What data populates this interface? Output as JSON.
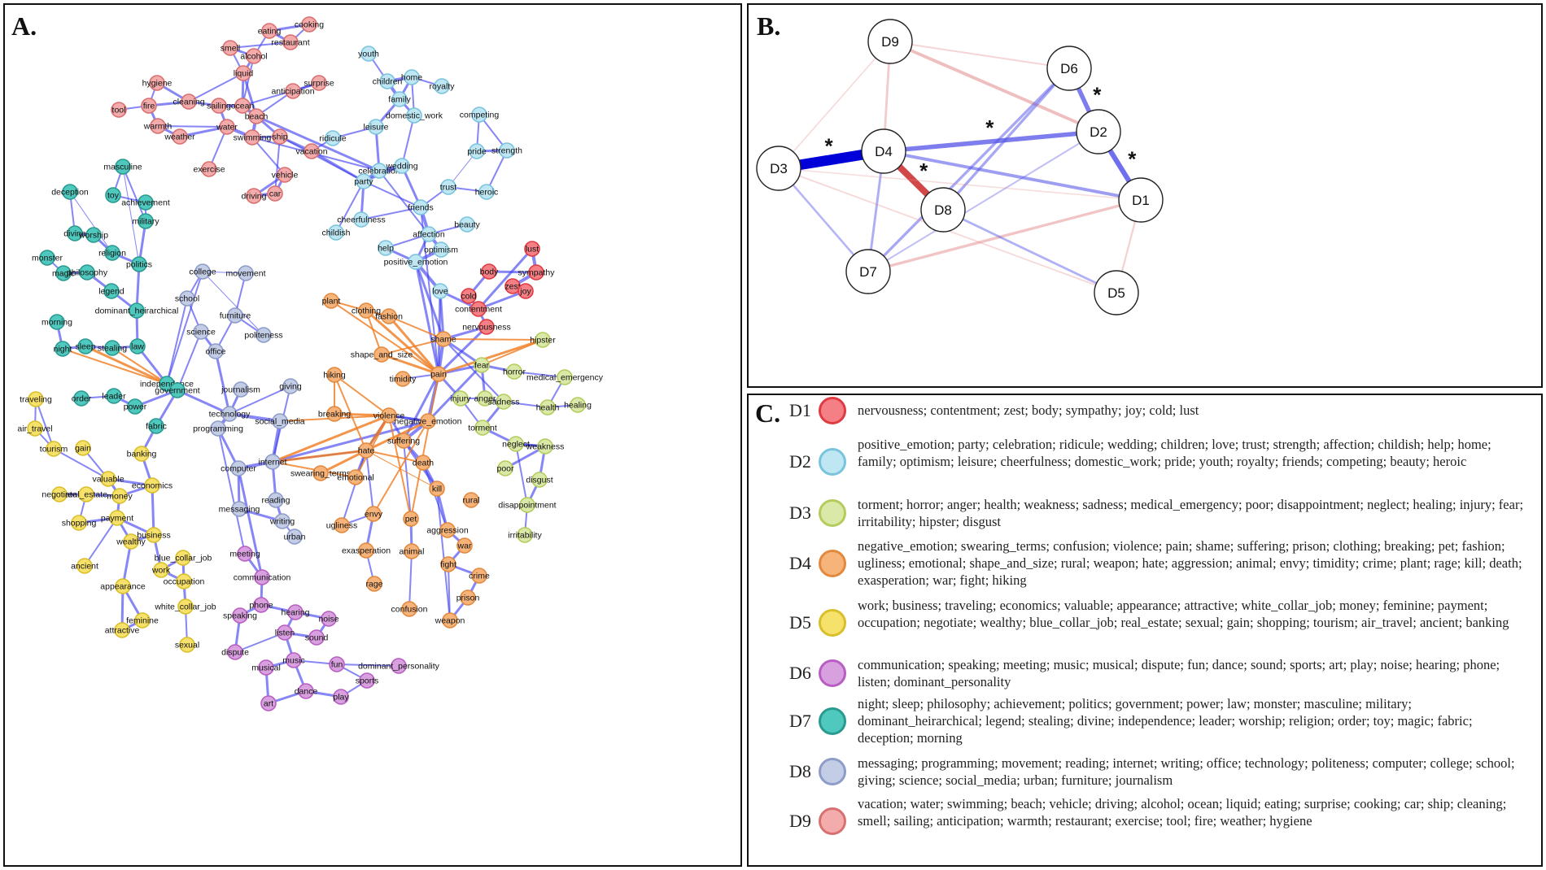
{
  "panel_a": {
    "label": "A.",
    "groups": {
      "D1": {
        "fill": "#f47f84",
        "stroke": "#e03a42"
      },
      "D2": {
        "fill": "#bfe6f3",
        "stroke": "#79c4dd"
      },
      "D3": {
        "fill": "#dbe9a8",
        "stroke": "#b4cc5c"
      },
      "D4": {
        "fill": "#f6b47a",
        "stroke": "#e3893d"
      },
      "D5": {
        "fill": "#f6e16b",
        "stroke": "#d9bf2a"
      },
      "D6": {
        "fill": "#d9a0e0",
        "stroke": "#b85ec2"
      },
      "D7": {
        "fill": "#4fc8bd",
        "stroke": "#2a9a90"
      },
      "D8": {
        "fill": "#c3cde6",
        "stroke": "#8e9cc8"
      },
      "D9": {
        "fill": "#f3abab",
        "stroke": "#d97070"
      }
    },
    "edge_colors": {
      "positive": "#3b3bf0",
      "negative": "#f07a1e"
    },
    "nodes": [
      {
        "id": "cooking",
        "g": "D9"
      },
      {
        "id": "eating",
        "g": "D9"
      },
      {
        "id": "restaurant",
        "g": "D9"
      },
      {
        "id": "smell",
        "g": "D9"
      },
      {
        "id": "alcohol",
        "g": "D9"
      },
      {
        "id": "liquid",
        "g": "D9"
      },
      {
        "id": "hygiene",
        "g": "D9"
      },
      {
        "id": "surprise",
        "g": "D9"
      },
      {
        "id": "anticipation",
        "g": "D9"
      },
      {
        "id": "tool",
        "g": "D9"
      },
      {
        "id": "fire",
        "g": "D9"
      },
      {
        "id": "cleaning",
        "g": "D9"
      },
      {
        "id": "sailing",
        "g": "D9"
      },
      {
        "id": "ocean",
        "g": "D9"
      },
      {
        "id": "beach",
        "g": "D9"
      },
      {
        "id": "warmth",
        "g": "D9"
      },
      {
        "id": "water",
        "g": "D9"
      },
      {
        "id": "weather",
        "g": "D9"
      },
      {
        "id": "swimming",
        "g": "D9"
      },
      {
        "id": "ship",
        "g": "D9"
      },
      {
        "id": "vacation",
        "g": "D9"
      },
      {
        "id": "exercise",
        "g": "D9"
      },
      {
        "id": "vehicle",
        "g": "D9"
      },
      {
        "id": "driving",
        "g": "D9"
      },
      {
        "id": "car",
        "g": "D9"
      },
      {
        "id": "youth",
        "g": "D2"
      },
      {
        "id": "children",
        "g": "D2"
      },
      {
        "id": "home",
        "g": "D2"
      },
      {
        "id": "royalty",
        "g": "D2"
      },
      {
        "id": "family",
        "g": "D2"
      },
      {
        "id": "domestic_work",
        "g": "D2"
      },
      {
        "id": "leisure",
        "g": "D2"
      },
      {
        "id": "ridicule",
        "g": "D2"
      },
      {
        "id": "competing",
        "g": "D2"
      },
      {
        "id": "pride",
        "g": "D2"
      },
      {
        "id": "strength",
        "g": "D2"
      },
      {
        "id": "celebration",
        "g": "D2"
      },
      {
        "id": "wedding",
        "g": "D2"
      },
      {
        "id": "party",
        "g": "D2"
      },
      {
        "id": "trust",
        "g": "D2"
      },
      {
        "id": "heroic",
        "g": "D2"
      },
      {
        "id": "friends",
        "g": "D2"
      },
      {
        "id": "beauty",
        "g": "D2"
      },
      {
        "id": "cheerfulness",
        "g": "D2"
      },
      {
        "id": "affection",
        "g": "D2"
      },
      {
        "id": "childish",
        "g": "D2"
      },
      {
        "id": "optimism",
        "g": "D2"
      },
      {
        "id": "help",
        "g": "D2"
      },
      {
        "id": "positive_emotion",
        "g": "D2"
      },
      {
        "id": "love",
        "g": "D2"
      },
      {
        "id": "masculine",
        "g": "D7"
      },
      {
        "id": "deception",
        "g": "D7"
      },
      {
        "id": "toy",
        "g": "D7"
      },
      {
        "id": "achievement",
        "g": "D7"
      },
      {
        "id": "military",
        "g": "D7"
      },
      {
        "id": "divine",
        "g": "D7"
      },
      {
        "id": "worship",
        "g": "D7"
      },
      {
        "id": "religion",
        "g": "D7"
      },
      {
        "id": "monster",
        "g": "D7"
      },
      {
        "id": "politics",
        "g": "D7"
      },
      {
        "id": "magic",
        "g": "D7"
      },
      {
        "id": "philosophy",
        "g": "D7"
      },
      {
        "id": "legend",
        "g": "D7"
      },
      {
        "id": "dominant_heirarchical",
        "g": "D7"
      },
      {
        "id": "morning",
        "g": "D7"
      },
      {
        "id": "night",
        "g": "D7"
      },
      {
        "id": "sleep",
        "g": "D7"
      },
      {
        "id": "stealing",
        "g": "D7"
      },
      {
        "id": "law",
        "g": "D7"
      },
      {
        "id": "independence",
        "g": "D7"
      },
      {
        "id": "government",
        "g": "D7"
      },
      {
        "id": "order",
        "g": "D7"
      },
      {
        "id": "leader",
        "g": "D7"
      },
      {
        "id": "power",
        "g": "D7"
      },
      {
        "id": "fabric",
        "g": "D7"
      },
      {
        "id": "college",
        "g": "D8"
      },
      {
        "id": "movement",
        "g": "D8"
      },
      {
        "id": "school",
        "g": "D8"
      },
      {
        "id": "furniture",
        "g": "D8"
      },
      {
        "id": "science",
        "g": "D8"
      },
      {
        "id": "politeness",
        "g": "D8"
      },
      {
        "id": "office",
        "g": "D8"
      },
      {
        "id": "journalism",
        "g": "D8"
      },
      {
        "id": "giving",
        "g": "D8"
      },
      {
        "id": "technology",
        "g": "D8"
      },
      {
        "id": "social_media",
        "g": "D8"
      },
      {
        "id": "programming",
        "g": "D8"
      },
      {
        "id": "internet",
        "g": "D8"
      },
      {
        "id": "computer",
        "g": "D8"
      },
      {
        "id": "reading",
        "g": "D8"
      },
      {
        "id": "messaging",
        "g": "D8"
      },
      {
        "id": "writing",
        "g": "D8"
      },
      {
        "id": "urban",
        "g": "D8"
      },
      {
        "id": "lust",
        "g": "D1"
      },
      {
        "id": "body",
        "g": "D1"
      },
      {
        "id": "sympathy",
        "g": "D1"
      },
      {
        "id": "zest",
        "g": "D1"
      },
      {
        "id": "joy",
        "g": "D1"
      },
      {
        "id": "cold",
        "g": "D1"
      },
      {
        "id": "contentment",
        "g": "D1"
      },
      {
        "id": "nervousness",
        "g": "D1"
      },
      {
        "id": "plant",
        "g": "D4"
      },
      {
        "id": "clothing",
        "g": "D4"
      },
      {
        "id": "fashion",
        "g": "D4"
      },
      {
        "id": "shame",
        "g": "D4"
      },
      {
        "id": "shape_and_size",
        "g": "D4"
      },
      {
        "id": "pain",
        "g": "D4"
      },
      {
        "id": "timidity",
        "g": "D4"
      },
      {
        "id": "hiking",
        "g": "D4"
      },
      {
        "id": "breaking",
        "g": "D4"
      },
      {
        "id": "violence",
        "g": "D4"
      },
      {
        "id": "negative_emotion",
        "g": "D4"
      },
      {
        "id": "suffering",
        "g": "D4"
      },
      {
        "id": "hate",
        "g": "D4"
      },
      {
        "id": "death",
        "g": "D4"
      },
      {
        "id": "swearing_terms",
        "g": "D4"
      },
      {
        "id": "emotional",
        "g": "D4"
      },
      {
        "id": "kill",
        "g": "D4"
      },
      {
        "id": "rural",
        "g": "D4"
      },
      {
        "id": "envy",
        "g": "D4"
      },
      {
        "id": "pet",
        "g": "D4"
      },
      {
        "id": "ugliness",
        "g": "D4"
      },
      {
        "id": "aggression",
        "g": "D4"
      },
      {
        "id": "war",
        "g": "D4"
      },
      {
        "id": "exasperation",
        "g": "D4"
      },
      {
        "id": "animal",
        "g": "D4"
      },
      {
        "id": "fight",
        "g": "D4"
      },
      {
        "id": "crime",
        "g": "D4"
      },
      {
        "id": "rage",
        "g": "D4"
      },
      {
        "id": "prison",
        "g": "D4"
      },
      {
        "id": "confusion",
        "g": "D4"
      },
      {
        "id": "weapon",
        "g": "D4"
      },
      {
        "id": "hipster",
        "g": "D3"
      },
      {
        "id": "fear",
        "g": "D3"
      },
      {
        "id": "horror",
        "g": "D3"
      },
      {
        "id": "medical_emergency",
        "g": "D3"
      },
      {
        "id": "injury",
        "g": "D3"
      },
      {
        "id": "anger",
        "g": "D3"
      },
      {
        "id": "sadness",
        "g": "D3"
      },
      {
        "id": "health",
        "g": "D3"
      },
      {
        "id": "healing",
        "g": "D3"
      },
      {
        "id": "torment",
        "g": "D3"
      },
      {
        "id": "neglect",
        "g": "D3"
      },
      {
        "id": "weakness",
        "g": "D3"
      },
      {
        "id": "poor",
        "g": "D3"
      },
      {
        "id": "disgust",
        "g": "D3"
      },
      {
        "id": "disappointment",
        "g": "D3"
      },
      {
        "id": "irritability",
        "g": "D3"
      },
      {
        "id": "traveling",
        "g": "D5"
      },
      {
        "id": "air_travel",
        "g": "D5"
      },
      {
        "id": "tourism",
        "g": "D5"
      },
      {
        "id": "gain",
        "g": "D5"
      },
      {
        "id": "banking",
        "g": "D5"
      },
      {
        "id": "valuable",
        "g": "D5"
      },
      {
        "id": "economics",
        "g": "D5"
      },
      {
        "id": "negotiate",
        "g": "D5"
      },
      {
        "id": "real_estate",
        "g": "D5"
      },
      {
        "id": "money",
        "g": "D5"
      },
      {
        "id": "payment",
        "g": "D5"
      },
      {
        "id": "shopping",
        "g": "D5"
      },
      {
        "id": "business",
        "g": "D5"
      },
      {
        "id": "wealthy",
        "g": "D5"
      },
      {
        "id": "blue_collar_job",
        "g": "D5"
      },
      {
        "id": "ancient",
        "g": "D5"
      },
      {
        "id": "work",
        "g": "D5"
      },
      {
        "id": "occupation",
        "g": "D5"
      },
      {
        "id": "appearance",
        "g": "D5"
      },
      {
        "id": "white_collar_job",
        "g": "D5"
      },
      {
        "id": "feminine",
        "g": "D5"
      },
      {
        "id": "attractive",
        "g": "D5"
      },
      {
        "id": "sexual",
        "g": "D5"
      },
      {
        "id": "meeting",
        "g": "D6"
      },
      {
        "id": "communication",
        "g": "D6"
      },
      {
        "id": "phone",
        "g": "D6"
      },
      {
        "id": "speaking",
        "g": "D6"
      },
      {
        "id": "hearing",
        "g": "D6"
      },
      {
        "id": "noise",
        "g": "D6"
      },
      {
        "id": "listen",
        "g": "D6"
      },
      {
        "id": "sound",
        "g": "D6"
      },
      {
        "id": "dispute",
        "g": "D6"
      },
      {
        "id": "music",
        "g": "D6"
      },
      {
        "id": "fun",
        "g": "D6"
      },
      {
        "id": "dominant_personality",
        "g": "D6"
      },
      {
        "id": "musical",
        "g": "D6"
      },
      {
        "id": "sports",
        "g": "D6"
      },
      {
        "id": "dance",
        "g": "D6"
      },
      {
        "id": "play",
        "g": "D6"
      },
      {
        "id": "art",
        "g": "D6"
      }
    ]
  },
  "panel_b": {
    "label": "B.",
    "nodes": [
      "D9",
      "D6",
      "D2",
      "D3",
      "D4",
      "D1",
      "D8",
      "D7",
      "D5"
    ],
    "edges": [
      {
        "a": "D3",
        "b": "D4",
        "weight": 0.9,
        "sign": "positive",
        "significant": true
      },
      {
        "a": "D4",
        "b": "D8",
        "weight": 0.55,
        "sign": "negative",
        "significant": true
      },
      {
        "a": "D4",
        "b": "D2",
        "weight": 0.35,
        "sign": "positive",
        "significant": true
      },
      {
        "a": "D6",
        "b": "D2",
        "weight": 0.35,
        "sign": "positive",
        "significant": true
      },
      {
        "a": "D2",
        "b": "D1",
        "weight": 0.4,
        "sign": "positive",
        "significant": true
      },
      {
        "a": "D4",
        "b": "D1",
        "weight": 0.22,
        "sign": "positive",
        "significant": false
      },
      {
        "a": "D9",
        "b": "D2",
        "weight": 0.22,
        "sign": "negative",
        "significant": false
      },
      {
        "a": "D9",
        "b": "D4",
        "weight": 0.14,
        "sign": "negative",
        "significant": false
      },
      {
        "a": "D8",
        "b": "D6",
        "weight": 0.18,
        "sign": "positive",
        "significant": false
      },
      {
        "a": "D7",
        "b": "D6",
        "weight": 0.18,
        "sign": "positive",
        "significant": false
      },
      {
        "a": "D7",
        "b": "D4",
        "weight": 0.15,
        "sign": "positive",
        "significant": false
      },
      {
        "a": "D7",
        "b": "D1",
        "weight": 0.18,
        "sign": "negative",
        "significant": false
      },
      {
        "a": "D8",
        "b": "D5",
        "weight": 0.14,
        "sign": "positive",
        "significant": false
      },
      {
        "a": "D3",
        "b": "D7",
        "weight": 0.12,
        "sign": "positive",
        "significant": false
      },
      {
        "a": "D9",
        "b": "D6",
        "weight": 0.08,
        "sign": "negative",
        "significant": false
      },
      {
        "a": "D1",
        "b": "D5",
        "weight": 0.1,
        "sign": "negative",
        "significant": false
      },
      {
        "a": "D3",
        "b": "D5",
        "weight": 0.06,
        "sign": "negative",
        "significant": false
      },
      {
        "a": "D3",
        "b": "D9",
        "weight": 0.05,
        "sign": "negative",
        "significant": false
      },
      {
        "a": "D7",
        "b": "D2",
        "weight": 0.08,
        "sign": "positive",
        "significant": false
      },
      {
        "a": "D3",
        "b": "D1",
        "weight": 0.04,
        "sign": "negative",
        "significant": false
      }
    ],
    "star": "*"
  },
  "panel_c": {
    "label": "C.",
    "rows": [
      {
        "id": "D1",
        "fill": "#f47f84",
        "stroke": "#e03a42",
        "text": "nervousness; contentment; zest; body; sympathy; joy; cold; lust"
      },
      {
        "id": "D2",
        "fill": "#bfe6f3",
        "stroke": "#79c4dd",
        "text": "positive_emotion; party; celebration; ridicule; wedding; children; love; trust; strength; affection; childish; help; home; family; optimism; leisure; cheerfulness; domestic_work; pride; youth; royalty; friends; competing; beauty; heroic"
      },
      {
        "id": "D3",
        "fill": "#dbe9a8",
        "stroke": "#b4cc5c",
        "text": "torment; horror; anger; health; weakness; sadness; medical_emergency; poor; disappointment; neglect; healing; injury; fear; irritability; hipster; disgust"
      },
      {
        "id": "D4",
        "fill": "#f6b47a",
        "stroke": "#e3893d",
        "text": "negative_emotion; swearing_terms; confusion; violence; pain; shame; suffering; prison; clothing; breaking; pet; fashion; ugliness; emotional; shape_and_size; rural; weapon; hate; aggression; animal; envy; timidity; crime; plant; rage; kill; death; exasperation; war; fight; hiking"
      },
      {
        "id": "D5",
        "fill": "#f6e16b",
        "stroke": "#d9bf2a",
        "text": "work; business; traveling; economics; valuable; appearance; attractive; white_collar_job; money; feminine; payment; occupation; negotiate; wealthy; blue_collar_job; real_estate; sexual; gain; shopping; tourism; air_travel; ancient; banking"
      },
      {
        "id": "D6",
        "fill": "#d9a0e0",
        "stroke": "#b85ec2",
        "text": "communication; speaking; meeting; music; musical; dispute; fun; dance; sound; sports; art; play; noise; hearing; phone; listen; dominant_personality"
      },
      {
        "id": "D7",
        "fill": "#4fc8bd",
        "stroke": "#2a9a90",
        "text": "night; sleep; philosophy; achievement; politics; government; power; law; monster; masculine; military; dominant_heirarchical; legend; stealing; divine; independence; leader; worship; religion; order; toy; magic; fabric; deception; morning"
      },
      {
        "id": "D8",
        "fill": "#c3cde6",
        "stroke": "#8e9cc8",
        "text": "messaging; programming; movement; reading; internet; writing; office; technology; politeness; computer; college; school; giving; science; social_media; urban; furniture; journalism"
      },
      {
        "id": "D9",
        "fill": "#f3abab",
        "stroke": "#d97070",
        "text": "vacation; water; swimming; beach; vehicle; driving; alcohol; ocean; liquid; eating; surprise; cooking; car; ship; cleaning; smell; sailing; anticipation; warmth; restaurant; exercise; tool; fire; weather; hygiene"
      }
    ]
  }
}
